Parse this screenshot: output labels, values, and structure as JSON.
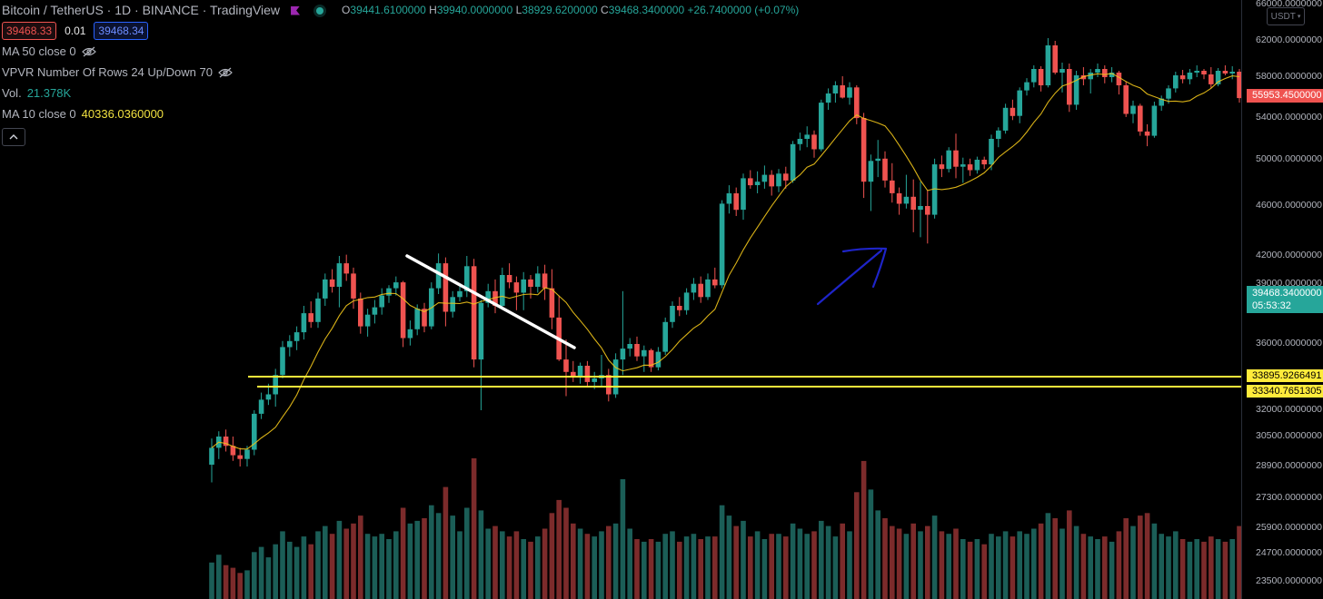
{
  "legend": {
    "title": "Bitcoin / TetherUS · 1D · BINANCE · TradingView",
    "ohlc": {
      "o_key": "O",
      "o_val": "39441.6100000",
      "h_key": "H",
      "h_val": "39940.0000000",
      "l_key": "L",
      "l_val": "38929.6200000",
      "c_key": "C",
      "c_val": "39468.3400000",
      "change": "+26.7400000 (+0.07%)"
    },
    "sell_price": "39468.33",
    "spread": "0.01",
    "buy_price": "39468.34",
    "indicators": [
      {
        "label": "MA 50 close 0",
        "value": ""
      },
      {
        "label": "VPVR Number Of Rows 24 Up/Down 70",
        "value": ""
      },
      {
        "label": "Vol.",
        "value": "21.378K"
      },
      {
        "label": "MA 10 close 0",
        "value": "40336.0360000"
      }
    ]
  },
  "price_axis": {
    "currency": "USDT",
    "ticks": [
      "62000.0000000",
      "58000.0000000",
      "54000.0000000",
      "50000.0000000",
      "46000.0000000",
      "42000.0000000",
      "36000.0000000",
      "32000.0000000",
      "30500.0000000",
      "28900.0000000",
      "27300.0000000",
      "25900.0000000",
      "24700.0000000",
      "23500.0000000"
    ],
    "partial_ticks": [
      "66000.0000000",
      "39000.0000000"
    ],
    "labels": {
      "high_marker": "55953.4500000",
      "last_price": "39468.3400000",
      "countdown": "05:53:32",
      "level_1": "33895.9266491",
      "level_2": "33340.7651305"
    }
  },
  "colors": {
    "up": "#26a69a",
    "down": "#ef5350",
    "vol_up": "#1b5e57",
    "vol_down": "#7c2b2b",
    "ma": "#f0c419",
    "level_line": "#ffeb3b",
    "trendline": "#ffffff",
    "arrow": "#1e24c8"
  },
  "chart_data": {
    "type": "candlestick",
    "symbol": "BTCUSDT",
    "interval": "1D",
    "horizontal_levels": [
      33895.9266491,
      33340.7651305
    ],
    "last_close": 39468.34,
    "candles": [
      {
        "o": 29000,
        "h": 30400,
        "l": 28100,
        "c": 29900,
        "v": 1.4
      },
      {
        "o": 29900,
        "h": 30800,
        "l": 29300,
        "c": 30500,
        "v": 1.7
      },
      {
        "o": 30500,
        "h": 30900,
        "l": 29700,
        "c": 30000,
        "v": 1.3
      },
      {
        "o": 30000,
        "h": 30500,
        "l": 29200,
        "c": 29500,
        "v": 1.2
      },
      {
        "o": 29500,
        "h": 29900,
        "l": 28900,
        "c": 29300,
        "v": 1.0
      },
      {
        "o": 29300,
        "h": 30000,
        "l": 28900,
        "c": 29800,
        "v": 1.1
      },
      {
        "o": 29800,
        "h": 32000,
        "l": 29500,
        "c": 31800,
        "v": 1.8
      },
      {
        "o": 31800,
        "h": 33000,
        "l": 31500,
        "c": 32600,
        "v": 2.0
      },
      {
        "o": 32600,
        "h": 33500,
        "l": 32300,
        "c": 32900,
        "v": 1.6
      },
      {
        "o": 32900,
        "h": 34400,
        "l": 32200,
        "c": 34000,
        "v": 2.1
      },
      {
        "o": 34000,
        "h": 36200,
        "l": 33800,
        "c": 35800,
        "v": 2.6
      },
      {
        "o": 35800,
        "h": 36600,
        "l": 35200,
        "c": 36200,
        "v": 2.2
      },
      {
        "o": 36200,
        "h": 37200,
        "l": 35600,
        "c": 36800,
        "v": 2.0
      },
      {
        "o": 36800,
        "h": 38600,
        "l": 36300,
        "c": 38100,
        "v": 2.4
      },
      {
        "o": 38100,
        "h": 38900,
        "l": 37100,
        "c": 37500,
        "v": 2.1
      },
      {
        "o": 37500,
        "h": 39500,
        "l": 37100,
        "c": 39100,
        "v": 2.6
      },
      {
        "o": 39100,
        "h": 40800,
        "l": 38600,
        "c": 40400,
        "v": 2.8
      },
      {
        "o": 40400,
        "h": 41100,
        "l": 39500,
        "c": 39900,
        "v": 2.5
      },
      {
        "o": 39900,
        "h": 42000,
        "l": 38500,
        "c": 41500,
        "v": 3.0
      },
      {
        "o": 41500,
        "h": 42100,
        "l": 40300,
        "c": 40800,
        "v": 2.7
      },
      {
        "o": 40800,
        "h": 41200,
        "l": 38400,
        "c": 39100,
        "v": 2.9
      },
      {
        "o": 39100,
        "h": 39500,
        "l": 36700,
        "c": 37200,
        "v": 3.2
      },
      {
        "o": 37200,
        "h": 38400,
        "l": 36500,
        "c": 38000,
        "v": 2.5
      },
      {
        "o": 38000,
        "h": 39000,
        "l": 37400,
        "c": 38500,
        "v": 2.4
      },
      {
        "o": 38500,
        "h": 39800,
        "l": 38000,
        "c": 39300,
        "v": 2.5
      },
      {
        "o": 39300,
        "h": 40000,
        "l": 38800,
        "c": 39800,
        "v": 2.3
      },
      {
        "o": 39800,
        "h": 40600,
        "l": 39300,
        "c": 40200,
        "v": 2.6
      },
      {
        "o": 40200,
        "h": 40300,
        "l": 35800,
        "c": 36400,
        "v": 3.5
      },
      {
        "o": 36400,
        "h": 37600,
        "l": 35900,
        "c": 37000,
        "v": 2.9
      },
      {
        "o": 37000,
        "h": 38700,
        "l": 36600,
        "c": 38400,
        "v": 3.0
      },
      {
        "o": 38400,
        "h": 38800,
        "l": 36800,
        "c": 37200,
        "v": 3.1
      },
      {
        "o": 37200,
        "h": 40200,
        "l": 37000,
        "c": 39800,
        "v": 3.6
      },
      {
        "o": 39800,
        "h": 42200,
        "l": 39400,
        "c": 41500,
        "v": 3.3
      },
      {
        "o": 41500,
        "h": 41900,
        "l": 37200,
        "c": 38200,
        "v": 4.3
      },
      {
        "o": 38200,
        "h": 39600,
        "l": 37800,
        "c": 39200,
        "v": 3.2
      },
      {
        "o": 39200,
        "h": 40000,
        "l": 38900,
        "c": 39600,
        "v": 2.6
      },
      {
        "o": 39600,
        "h": 42000,
        "l": 39200,
        "c": 41300,
        "v": 3.5
      },
      {
        "o": 41300,
        "h": 41800,
        "l": 34500,
        "c": 35000,
        "v": 5.4
      },
      {
        "o": 35000,
        "h": 39000,
        "l": 32000,
        "c": 38800,
        "v": 3.4
      },
      {
        "o": 38800,
        "h": 40100,
        "l": 38500,
        "c": 39600,
        "v": 2.7
      },
      {
        "o": 39600,
        "h": 40400,
        "l": 38100,
        "c": 38600,
        "v": 2.8
      },
      {
        "o": 38600,
        "h": 41200,
        "l": 38400,
        "c": 40700,
        "v": 2.6
      },
      {
        "o": 40700,
        "h": 41500,
        "l": 39800,
        "c": 40200,
        "v": 2.4
      },
      {
        "o": 40200,
        "h": 40600,
        "l": 38300,
        "c": 39500,
        "v": 2.6
      },
      {
        "o": 39500,
        "h": 40900,
        "l": 38300,
        "c": 40400,
        "v": 2.3
      },
      {
        "o": 40400,
        "h": 40700,
        "l": 39100,
        "c": 39900,
        "v": 2.2
      },
      {
        "o": 39900,
        "h": 41300,
        "l": 39500,
        "c": 40800,
        "v": 2.4
      },
      {
        "o": 40800,
        "h": 41400,
        "l": 39000,
        "c": 39800,
        "v": 2.7
      },
      {
        "o": 39800,
        "h": 41100,
        "l": 37000,
        "c": 37800,
        "v": 3.3
      },
      {
        "o": 37800,
        "h": 39300,
        "l": 34900,
        "c": 35000,
        "v": 3.8
      },
      {
        "o": 35000,
        "h": 36300,
        "l": 32800,
        "c": 34200,
        "v": 3.5
      },
      {
        "o": 34200,
        "h": 34900,
        "l": 33600,
        "c": 33900,
        "v": 2.9
      },
      {
        "o": 33900,
        "h": 34800,
        "l": 33500,
        "c": 34600,
        "v": 2.7
      },
      {
        "o": 34600,
        "h": 34900,
        "l": 33300,
        "c": 33600,
        "v": 2.5
      },
      {
        "o": 33600,
        "h": 34200,
        "l": 33200,
        "c": 33800,
        "v": 2.4
      },
      {
        "o": 33800,
        "h": 35300,
        "l": 33300,
        "c": 34000,
        "v": 2.6
      },
      {
        "o": 34000,
        "h": 34400,
        "l": 32500,
        "c": 32900,
        "v": 2.8
      },
      {
        "o": 32900,
        "h": 35400,
        "l": 32700,
        "c": 35000,
        "v": 2.9
      },
      {
        "o": 35000,
        "h": 39600,
        "l": 34000,
        "c": 35700,
        "v": 4.6
      },
      {
        "o": 35700,
        "h": 36400,
        "l": 35200,
        "c": 36000,
        "v": 2.7
      },
      {
        "o": 36000,
        "h": 36500,
        "l": 34900,
        "c": 35200,
        "v": 2.3
      },
      {
        "o": 35200,
        "h": 35900,
        "l": 34200,
        "c": 35600,
        "v": 2.2
      },
      {
        "o": 35600,
        "h": 35700,
        "l": 34200,
        "c": 34500,
        "v": 2.3
      },
      {
        "o": 34500,
        "h": 35800,
        "l": 34300,
        "c": 35500,
        "v": 2.2
      },
      {
        "o": 35500,
        "h": 37800,
        "l": 35300,
        "c": 37500,
        "v": 2.5
      },
      {
        "o": 37500,
        "h": 38900,
        "l": 37100,
        "c": 38600,
        "v": 2.6
      },
      {
        "o": 38600,
        "h": 39200,
        "l": 37900,
        "c": 38300,
        "v": 2.2
      },
      {
        "o": 38300,
        "h": 39800,
        "l": 38000,
        "c": 39500,
        "v": 2.4
      },
      {
        "o": 39500,
        "h": 40500,
        "l": 39000,
        "c": 40100,
        "v": 2.5
      },
      {
        "o": 40100,
        "h": 40600,
        "l": 38800,
        "c": 39200,
        "v": 2.3
      },
      {
        "o": 39200,
        "h": 40800,
        "l": 39000,
        "c": 40400,
        "v": 2.4
      },
      {
        "o": 40400,
        "h": 41200,
        "l": 39800,
        "c": 40000,
        "v": 2.4
      },
      {
        "o": 40000,
        "h": 46500,
        "l": 39800,
        "c": 46200,
        "v": 3.6
      },
      {
        "o": 46200,
        "h": 47800,
        "l": 45400,
        "c": 47100,
        "v": 3.2
      },
      {
        "o": 47100,
        "h": 47600,
        "l": 45200,
        "c": 45700,
        "v": 2.8
      },
      {
        "o": 45700,
        "h": 48800,
        "l": 44900,
        "c": 48400,
        "v": 3.0
      },
      {
        "o": 48400,
        "h": 49100,
        "l": 47500,
        "c": 47800,
        "v": 2.4
      },
      {
        "o": 47800,
        "h": 49000,
        "l": 47100,
        "c": 48100,
        "v": 2.6
      },
      {
        "o": 48100,
        "h": 49500,
        "l": 47500,
        "c": 48700,
        "v": 2.3
      },
      {
        "o": 48700,
        "h": 49100,
        "l": 46900,
        "c": 47700,
        "v": 2.5
      },
      {
        "o": 47700,
        "h": 49200,
        "l": 47200,
        "c": 48800,
        "v": 2.5
      },
      {
        "o": 48800,
        "h": 49400,
        "l": 47500,
        "c": 48200,
        "v": 2.4
      },
      {
        "o": 48200,
        "h": 51800,
        "l": 48000,
        "c": 51500,
        "v": 2.9
      },
      {
        "o": 51500,
        "h": 52600,
        "l": 50900,
        "c": 52000,
        "v": 2.7
      },
      {
        "o": 52000,
        "h": 53200,
        "l": 51200,
        "c": 52400,
        "v": 2.5
      },
      {
        "o": 52400,
        "h": 52800,
        "l": 50200,
        "c": 51000,
        "v": 2.6
      },
      {
        "o": 51000,
        "h": 55800,
        "l": 50800,
        "c": 55500,
        "v": 3.0
      },
      {
        "o": 55500,
        "h": 56900,
        "l": 54800,
        "c": 56400,
        "v": 2.8
      },
      {
        "o": 56400,
        "h": 57600,
        "l": 55500,
        "c": 57200,
        "v": 2.4
      },
      {
        "o": 57200,
        "h": 58100,
        "l": 55900,
        "c": 56000,
        "v": 2.9
      },
      {
        "o": 56000,
        "h": 57500,
        "l": 55300,
        "c": 57000,
        "v": 2.6
      },
      {
        "o": 57000,
        "h": 57200,
        "l": 53400,
        "c": 54000,
        "v": 4.1
      },
      {
        "o": 54000,
        "h": 54500,
        "l": 46700,
        "c": 48100,
        "v": 5.3
      },
      {
        "o": 48100,
        "h": 50500,
        "l": 45600,
        "c": 49900,
        "v": 4.2
      },
      {
        "o": 49900,
        "h": 51900,
        "l": 48500,
        "c": 50100,
        "v": 3.4
      },
      {
        "o": 50100,
        "h": 50800,
        "l": 47600,
        "c": 48200,
        "v": 3.1
      },
      {
        "o": 48200,
        "h": 49700,
        "l": 46300,
        "c": 47100,
        "v": 2.8
      },
      {
        "o": 47100,
        "h": 47600,
        "l": 45300,
        "c": 46200,
        "v": 2.7
      },
      {
        "o": 46200,
        "h": 48700,
        "l": 45800,
        "c": 46800,
        "v": 2.5
      },
      {
        "o": 46800,
        "h": 48300,
        "l": 43900,
        "c": 45700,
        "v": 2.9
      },
      {
        "o": 45700,
        "h": 48100,
        "l": 43500,
        "c": 46000,
        "v": 2.6
      },
      {
        "o": 46000,
        "h": 47400,
        "l": 43000,
        "c": 45300,
        "v": 2.8
      },
      {
        "o": 45300,
        "h": 50100,
        "l": 45000,
        "c": 49600,
        "v": 3.2
      },
      {
        "o": 49600,
        "h": 50400,
        "l": 48500,
        "c": 49200,
        "v": 2.6
      },
      {
        "o": 49200,
        "h": 51200,
        "l": 48900,
        "c": 50900,
        "v": 2.5
      },
      {
        "o": 50900,
        "h": 52500,
        "l": 48400,
        "c": 49400,
        "v": 2.7
      },
      {
        "o": 49400,
        "h": 50200,
        "l": 48000,
        "c": 49600,
        "v": 2.3
      },
      {
        "o": 49600,
        "h": 50100,
        "l": 48600,
        "c": 49100,
        "v": 2.2
      },
      {
        "o": 49100,
        "h": 50300,
        "l": 48800,
        "c": 50000,
        "v": 2.3
      },
      {
        "o": 50000,
        "h": 50300,
        "l": 49200,
        "c": 49600,
        "v": 2.1
      },
      {
        "o": 49600,
        "h": 52400,
        "l": 49100,
        "c": 52000,
        "v": 2.5
      },
      {
        "o": 52000,
        "h": 53100,
        "l": 51200,
        "c": 52800,
        "v": 2.4
      },
      {
        "o": 52800,
        "h": 55400,
        "l": 52500,
        "c": 55000,
        "v": 2.6
      },
      {
        "o": 55000,
        "h": 55800,
        "l": 53800,
        "c": 54200,
        "v": 2.4
      },
      {
        "o": 54200,
        "h": 57000,
        "l": 53500,
        "c": 56700,
        "v": 2.6
      },
      {
        "o": 56700,
        "h": 57900,
        "l": 56200,
        "c": 57500,
        "v": 2.5
      },
      {
        "o": 57500,
        "h": 59300,
        "l": 57000,
        "c": 58900,
        "v": 2.7
      },
      {
        "o": 58900,
        "h": 59200,
        "l": 56600,
        "c": 57200,
        "v": 2.9
      },
      {
        "o": 57200,
        "h": 62300,
        "l": 57000,
        "c": 61500,
        "v": 3.3
      },
      {
        "o": 61500,
        "h": 62000,
        "l": 58300,
        "c": 58500,
        "v": 3.1
      },
      {
        "o": 58500,
        "h": 59600,
        "l": 56500,
        "c": 58900,
        "v": 2.7
      },
      {
        "o": 58900,
        "h": 59500,
        "l": 54600,
        "c": 55300,
        "v": 3.4
      },
      {
        "o": 55300,
        "h": 58700,
        "l": 54800,
        "c": 58200,
        "v": 2.8
      },
      {
        "o": 58200,
        "h": 59100,
        "l": 57200,
        "c": 57800,
        "v": 2.5
      },
      {
        "o": 57800,
        "h": 58900,
        "l": 56400,
        "c": 58500,
        "v": 2.4
      },
      {
        "o": 58500,
        "h": 59500,
        "l": 58000,
        "c": 58900,
        "v": 2.3
      },
      {
        "o": 58900,
        "h": 59300,
        "l": 57400,
        "c": 58000,
        "v": 2.4
      },
      {
        "o": 58000,
        "h": 59100,
        "l": 57500,
        "c": 58500,
        "v": 2.2
      },
      {
        "o": 58500,
        "h": 58700,
        "l": 56300,
        "c": 57200,
        "v": 2.6
      },
      {
        "o": 57200,
        "h": 57600,
        "l": 54100,
        "c": 54400,
        "v": 3.1
      },
      {
        "o": 54400,
        "h": 55700,
        "l": 53500,
        "c": 55200,
        "v": 2.8
      },
      {
        "o": 55200,
        "h": 55400,
        "l": 52300,
        "c": 52700,
        "v": 3.2
      },
      {
        "o": 52700,
        "h": 53400,
        "l": 51300,
        "c": 52300,
        "v": 3.3
      },
      {
        "o": 52300,
        "h": 55600,
        "l": 52100,
        "c": 55200,
        "v": 2.9
      },
      {
        "o": 55200,
        "h": 56200,
        "l": 54700,
        "c": 55900,
        "v": 2.5
      },
      {
        "o": 55900,
        "h": 57200,
        "l": 55400,
        "c": 56900,
        "v": 2.4
      },
      {
        "o": 56900,
        "h": 58600,
        "l": 56500,
        "c": 58200,
        "v": 2.6
      },
      {
        "o": 58200,
        "h": 58800,
        "l": 57400,
        "c": 57800,
        "v": 2.3
      },
      {
        "o": 57800,
        "h": 58900,
        "l": 57300,
        "c": 58500,
        "v": 2.2
      },
      {
        "o": 58500,
        "h": 59300,
        "l": 58000,
        "c": 58700,
        "v": 2.3
      },
      {
        "o": 58700,
        "h": 58900,
        "l": 57800,
        "c": 58300,
        "v": 2.2
      },
      {
        "o": 58300,
        "h": 59100,
        "l": 56900,
        "c": 57300,
        "v": 2.4
      },
      {
        "o": 57300,
        "h": 59000,
        "l": 57100,
        "c": 58700,
        "v": 2.3
      },
      {
        "o": 58700,
        "h": 59300,
        "l": 58200,
        "c": 58400,
        "v": 2.2
      },
      {
        "o": 58400,
        "h": 59200,
        "l": 57800,
        "c": 58600,
        "v": 2.3
      },
      {
        "o": 58600,
        "h": 58900,
        "l": 55500,
        "c": 55950,
        "v": 2.8
      }
    ]
  }
}
